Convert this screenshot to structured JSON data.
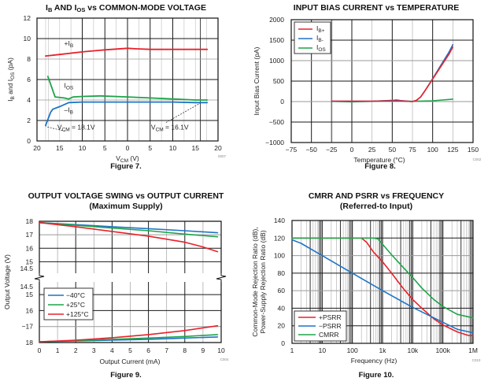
{
  "chart_data": [
    {
      "id": "fig7",
      "type": "line",
      "title": "I_B AND I_OS vs COMMON-MODE VOLTAGE",
      "title_parts": [
        "I",
        "B",
        " AND I",
        "OS",
        " vs COMMON-MODE VOLTAGE"
      ],
      "xlabel": "V_CM (V)",
      "xlabel_parts": [
        "V",
        "CM",
        " (V)"
      ],
      "ylabel": "I_B and I_OS (pA)",
      "ylabel_parts": [
        "I",
        "B",
        " and I",
        "OS",
        " (pA)"
      ],
      "caption": "Figure 7.",
      "code": "0007",
      "x_ticks": [
        "20",
        "15",
        "10",
        "5",
        "0",
        "5",
        "10",
        "15",
        "20"
      ],
      "xlim": [
        -20,
        20
      ],
      "y_ticks": [
        "0",
        "2",
        "4",
        "6",
        "8",
        "10",
        "12"
      ],
      "ylim": [
        0,
        12
      ],
      "grid": true,
      "series": [
        {
          "name": "+I_B",
          "color": "#e8212a",
          "x": [
            -18.1,
            -15,
            -10,
            -5,
            0,
            2,
            5,
            10,
            15,
            17.6
          ],
          "y": [
            8.3,
            8.45,
            8.7,
            8.9,
            9.05,
            9.0,
            8.95,
            8.95,
            8.95,
            8.95
          ]
        },
        {
          "name": "I_OS",
          "color": "#1fa34a",
          "x": [
            -17.6,
            -16,
            -14,
            -13,
            -12,
            -10,
            -6,
            0,
            5,
            10,
            15,
            17.6
          ],
          "y": [
            6.3,
            4.3,
            4.2,
            4.1,
            4.3,
            4.35,
            4.4,
            4.3,
            4.2,
            4.1,
            4.0,
            4.0
          ]
        },
        {
          "name": "-I_B",
          "color": "#1f74c8",
          "x": [
            -18.1,
            -17,
            -16.5,
            -15,
            -13,
            -10,
            0,
            10,
            15,
            17.6
          ],
          "y": [
            1.5,
            2.8,
            3.1,
            3.35,
            3.75,
            3.8,
            3.8,
            3.8,
            3.75,
            3.75
          ]
        }
      ],
      "annotations": [
        {
          "label_parts": [
            "+I",
            "B"
          ],
          "x": -14,
          "y": 9.3
        },
        {
          "label_parts": [
            "I",
            "OS"
          ],
          "x": -14,
          "y": 5.2
        },
        {
          "label_parts": [
            "–I",
            "B"
          ],
          "x": -14,
          "y": 2.8
        },
        {
          "label_parts": [
            "V",
            "CM",
            " =   18.1V"
          ],
          "x": -15.5,
          "y": 1.1
        },
        {
          "label_parts": [
            "V",
            "CM",
            " = 16.1V"
          ],
          "x": 5.2,
          "y": 1.1
        }
      ]
    },
    {
      "id": "fig8",
      "type": "line",
      "title": "INPUT BIAS CURRENT vs TEMPERATURE",
      "xlabel": "Temperature (°C)",
      "ylabel": "Input Bias Current (pA)",
      "caption": "Figure 8.",
      "code": "C002",
      "x_ticks": [
        "−75",
        "−50",
        "−25",
        "0",
        "25",
        "50",
        "75",
        "100",
        "125",
        "150"
      ],
      "xlim": [
        -75,
        150
      ],
      "y_ticks": [
        "−1000",
        "−500",
        "0",
        "500",
        "1000",
        "1500",
        "2000"
      ],
      "ylim": [
        -1000,
        2000
      ],
      "grid": true,
      "legend": "top-left",
      "series": [
        {
          "name": "I_B+",
          "legend_parts": [
            "I",
            "B+"
          ],
          "color": "#e8212a",
          "x": [
            -25,
            0,
            25,
            50,
            60,
            70,
            75,
            80,
            85,
            90,
            100,
            110,
            120,
            125
          ],
          "y": [
            10,
            10,
            10,
            15,
            15,
            5,
            0,
            30,
            110,
            250,
            550,
            850,
            1150,
            1330
          ]
        },
        {
          "name": "I_B-",
          "legend_parts": [
            "I",
            "B-"
          ],
          "color": "#1f74c8",
          "x": [
            -25,
            0,
            25,
            50,
            55,
            60,
            70,
            75,
            80,
            85,
            90,
            100,
            110,
            120,
            125
          ],
          "y": [
            10,
            10,
            10,
            25,
            40,
            25,
            5,
            0,
            30,
            110,
            250,
            560,
            880,
            1200,
            1390
          ]
        },
        {
          "name": "I_OS",
          "legend_parts": [
            "I",
            "OS"
          ],
          "color": "#1fa34a",
          "x": [
            -25,
            0,
            25,
            50,
            60,
            75,
            100,
            125
          ],
          "y": [
            5,
            -5,
            5,
            30,
            20,
            5,
            20,
            60
          ]
        }
      ]
    },
    {
      "id": "fig9",
      "type": "line",
      "title": "OUTPUT VOLTAGE SWING vs OUTPUT CURRENT",
      "subtitle": "(Maximum Supply)",
      "xlabel": "Output Current (mA)",
      "ylabel": "Output Voltage (V)",
      "caption": "Figure 9.",
      "code": "C004",
      "x_ticks": [
        "0",
        "1",
        "2",
        "3",
        "4",
        "5",
        "6",
        "7",
        "8",
        "9",
        "10"
      ],
      "xlim": [
        0,
        10
      ],
      "upper_panel": {
        "ylim": [
          14.5,
          18
        ],
        "y_ticks": [
          "18",
          "17",
          "16",
          "15",
          "14.5"
        ],
        "y_values": [
          18,
          17,
          16,
          15,
          14.5
        ]
      },
      "lower_panel": {
        "ylim": [
          -18,
          -14.5
        ],
        "y_ticks": [
          "14.5",
          "15",
          "16",
          "−17",
          "18"
        ],
        "y_values": [
          -14.5,
          -15,
          -16,
          -17,
          -18
        ]
      },
      "grid": true,
      "legend": "lower-left",
      "series": [
        {
          "name": "−40°C",
          "color": "#1f74c8",
          "upper": {
            "x": [
              0,
              2,
              4,
              6,
              8,
              9.8
            ],
            "y": [
              17.9,
              17.75,
              17.6,
              17.45,
              17.3,
              17.15
            ]
          },
          "lower": {
            "x": [
              0,
              2,
              4,
              6,
              8,
              9.8
            ],
            "y": [
              -17.95,
              -17.9,
              -17.85,
              -17.8,
              -17.72,
              -17.65
            ]
          }
        },
        {
          "name": "+25°C",
          "color": "#1fa34a",
          "upper": {
            "x": [
              0,
              2,
              4,
              6,
              8,
              9.8
            ],
            "y": [
              17.9,
              17.7,
              17.5,
              17.3,
              17.05,
              16.85
            ]
          },
          "lower": {
            "x": [
              0,
              2,
              4,
              6,
              8,
              9.8
            ],
            "y": [
              -17.95,
              -17.88,
              -17.8,
              -17.72,
              -17.62,
              -17.5
            ]
          }
        },
        {
          "name": "+125°C",
          "color": "#e8212a",
          "upper": {
            "x": [
              0,
              2,
              4,
              6,
              8,
              9,
              9.8
            ],
            "y": [
              17.9,
              17.6,
              17.25,
              16.9,
              16.45,
              16.1,
              15.75
            ]
          },
          "lower": {
            "x": [
              0,
              2,
              4,
              6,
              8,
              9.8
            ],
            "y": [
              -17.95,
              -17.85,
              -17.7,
              -17.5,
              -17.25,
              -16.95
            ]
          }
        }
      ]
    },
    {
      "id": "fig10",
      "type": "line",
      "title": "CMRR AND PSRR vs FREQUENCY",
      "subtitle": "(Referred-to Input)",
      "xlabel": "Frequency (Hz)",
      "ylabel": "Common-Mode Rejection Ratio (dB), Power-Supply Rejection Ratio (dB)",
      "ylabel_lines": [
        "Common-Mode Rejection Ratio (dB),",
        "Power-Supply Rejection Ratio (dB)"
      ],
      "caption": "Figure 10.",
      "code": "C010",
      "x_scale": "log",
      "x_ticks": [
        "1",
        "10",
        "100",
        "1k",
        "10k",
        "100k",
        "1M"
      ],
      "xlim": [
        1,
        1000000
      ],
      "y_ticks": [
        "0",
        "20",
        "40",
        "60",
        "80",
        "100",
        "120",
        "140"
      ],
      "ylim": [
        0,
        140
      ],
      "grid": true,
      "legend": "bottom-left",
      "series": [
        {
          "name": "+PSRR",
          "color": "#e8212a",
          "x": [
            1,
            100,
            200,
            300,
            500,
            1000,
            2000,
            5000,
            10000,
            20000,
            50000,
            100000,
            300000,
            700000,
            1000000
          ],
          "y": [
            120,
            120,
            120,
            115,
            104,
            93,
            80,
            62,
            50,
            40,
            28,
            21,
            13,
            9,
            9
          ]
        },
        {
          "name": "−PSRR",
          "color": "#1f74c8",
          "x": [
            1,
            2,
            10,
            100,
            1000,
            10000,
            100000,
            300000,
            1000000
          ],
          "y": [
            118,
            114,
            100,
            80,
            60,
            41,
            24,
            16,
            12
          ]
        },
        {
          "name": "CMRR",
          "color": "#1fa34a",
          "x": [
            1,
            100,
            500,
            700,
            1000,
            2000,
            5000,
            10000,
            20000,
            50000,
            100000,
            300000,
            1000000
          ],
          "y": [
            120,
            120,
            120,
            119,
            113,
            101,
            86,
            75,
            63,
            50,
            42,
            33,
            29
          ]
        }
      ]
    }
  ]
}
